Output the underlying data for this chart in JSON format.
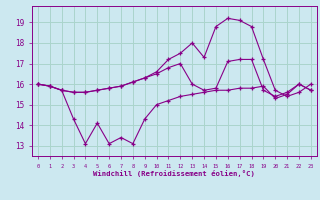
{
  "title": "",
  "xlabel": "Windchill (Refroidissement éolien,°C)",
  "background_color": "#cce8f0",
  "grid_color": "#aad4cc",
  "line_color": "#880088",
  "x_hours": [
    0,
    1,
    2,
    3,
    4,
    5,
    6,
    7,
    8,
    9,
    10,
    11,
    12,
    13,
    14,
    15,
    16,
    17,
    18,
    19,
    20,
    21,
    22,
    23
  ],
  "series1": [
    16.0,
    15.9,
    15.7,
    14.3,
    13.1,
    14.1,
    13.1,
    13.4,
    13.1,
    14.3,
    15.0,
    15.2,
    15.4,
    15.5,
    15.6,
    15.7,
    15.7,
    15.8,
    15.8,
    15.9,
    15.3,
    15.5,
    16.0,
    15.7
  ],
  "series2": [
    16.0,
    15.9,
    15.7,
    15.6,
    15.6,
    15.7,
    15.8,
    15.9,
    16.1,
    16.3,
    16.5,
    16.8,
    17.0,
    16.0,
    15.7,
    15.8,
    17.1,
    17.2,
    17.2,
    15.7,
    15.4,
    15.6,
    16.0,
    15.7
  ],
  "series3": [
    16.0,
    15.9,
    15.7,
    15.6,
    15.6,
    15.7,
    15.8,
    15.9,
    16.1,
    16.3,
    16.6,
    17.2,
    17.5,
    18.0,
    17.3,
    18.8,
    19.2,
    19.1,
    18.8,
    17.2,
    15.7,
    15.4,
    15.6,
    16.0
  ],
  "ylim": [
    12.5,
    19.8
  ],
  "yticks": [
    13,
    14,
    15,
    16,
    17,
    18,
    19
  ],
  "xlim": [
    -0.5,
    23.5
  ]
}
